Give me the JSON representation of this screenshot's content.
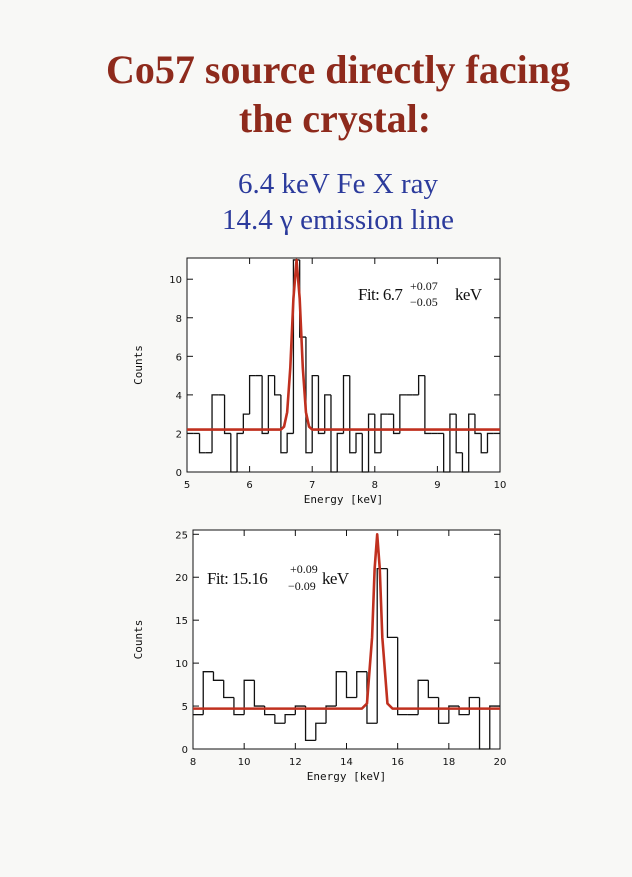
{
  "slide": {
    "title": [
      "Co57 source directly facing",
      "the crystal:"
    ],
    "subtitle": [
      "6.4 keV Fe X ray",
      "14.4 γ emission line"
    ]
  },
  "chart_data": [
    {
      "type": "histogram",
      "xlabel": "Energy [keV]",
      "ylabel": "Counts",
      "color": "#111111",
      "bins": [
        5.0,
        5.1,
        5.2,
        5.3,
        5.4,
        5.5,
        5.6,
        5.7,
        5.8,
        5.9,
        6.0,
        6.1,
        6.2,
        6.3,
        6.4,
        6.5,
        6.6,
        6.7,
        6.8,
        6.9,
        7.0,
        7.1,
        7.2,
        7.3,
        7.4,
        7.5,
        7.6,
        7.7,
        7.8,
        7.9,
        8.0,
        8.1,
        8.2,
        8.3,
        8.4,
        8.5,
        8.6,
        8.7,
        8.8,
        8.9,
        9.0,
        9.1,
        9.2,
        9.3,
        9.4,
        9.5,
        9.6,
        9.7,
        9.8,
        9.9,
        10.0
      ],
      "values": [
        2,
        2,
        1,
        1,
        4,
        4,
        2,
        0,
        2,
        3,
        5,
        5,
        2,
        5,
        4,
        1,
        2,
        11,
        7,
        1,
        5,
        2,
        4,
        0,
        2,
        5,
        1,
        2,
        0,
        3,
        1,
        3,
        3,
        2,
        4,
        4,
        4,
        5,
        2,
        2,
        2,
        0,
        3,
        1,
        0,
        3,
        2,
        1,
        2,
        2
      ],
      "fit": {
        "color": "#c0301f",
        "x": [
          5,
          6.5,
          6.55,
          6.6,
          6.65,
          6.7,
          6.75,
          6.8,
          6.85,
          6.9,
          6.95,
          7.0,
          10
        ],
        "values": [
          2.2,
          2.2,
          2.35,
          3.1,
          5.4,
          9.0,
          11,
          9.0,
          5.4,
          3.1,
          2.35,
          2.2,
          2.2
        ]
      },
      "annotation": {
        "text": "Fit: 6.7",
        "upper": "+0.07",
        "lower": "−0.05",
        "unit": "keV"
      },
      "xlim": [
        5,
        10
      ],
      "ylim": [
        0,
        11.1
      ],
      "xticks": [
        5,
        6,
        7,
        8,
        9,
        10
      ],
      "yticks": [
        0,
        2,
        4,
        6,
        8,
        10
      ],
      "grid": false
    },
    {
      "type": "histogram",
      "xlabel": "Energy [keV]",
      "ylabel": "Counts",
      "color": "#111111",
      "bins": [
        8.0,
        8.4,
        8.8,
        9.2,
        9.6,
        10.0,
        10.4,
        10.8,
        11.2,
        11.6,
        12.0,
        12.4,
        12.8,
        13.2,
        13.6,
        14.0,
        14.4,
        14.8,
        15.2,
        15.6,
        16.0,
        16.4,
        16.8,
        17.2,
        17.6,
        18.0,
        18.4,
        18.8,
        19.2,
        19.6,
        20.0
      ],
      "values": [
        4,
        9,
        8,
        6,
        4,
        8,
        5,
        4,
        3,
        4,
        5,
        1,
        3,
        5,
        9,
        6,
        9,
        3,
        21,
        13,
        4,
        4,
        8,
        6,
        3,
        5,
        4,
        6,
        0,
        5
      ],
      "fit": {
        "color": "#c0301f",
        "x": [
          8,
          14.6,
          14.8,
          15.0,
          15.1,
          15.2,
          15.3,
          15.4,
          15.6,
          15.8,
          20
        ],
        "values": [
          4.7,
          4.7,
          5.3,
          13,
          21,
          25,
          21,
          13,
          5.3,
          4.7,
          4.7
        ]
      },
      "annotation": {
        "text": "Fit: 15.16",
        "upper": "+0.09",
        "lower": "−0.09",
        "unit": "keV"
      },
      "xlim": [
        8,
        20
      ],
      "ylim": [
        0,
        25.5
      ],
      "xticks": [
        8,
        10,
        12,
        14,
        16,
        18,
        20
      ],
      "yticks": [
        0,
        5,
        10,
        15,
        20,
        25
      ],
      "grid": false
    }
  ]
}
